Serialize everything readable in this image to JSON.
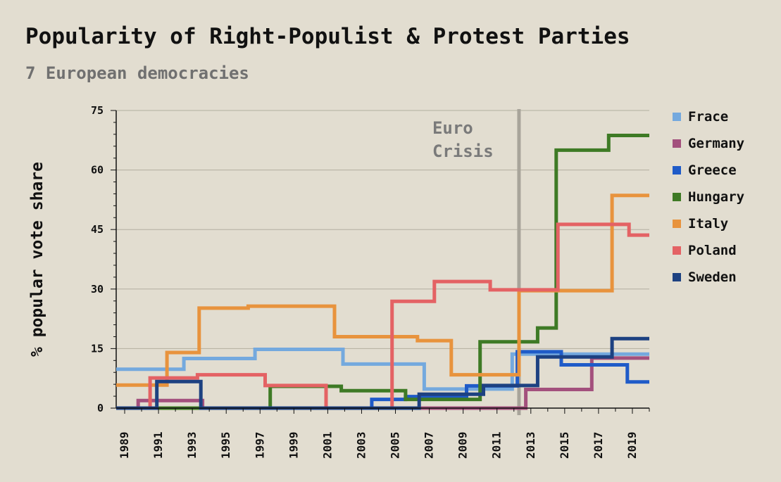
{
  "chart_data": {
    "type": "line",
    "title": "Popularity of Right-Populist & Protest Parties",
    "subtitle": "7 European democracies",
    "ylabel": "% popular vote share",
    "xlabel": "",
    "xlim": [
      1988.5,
      2020
    ],
    "ylim": [
      0,
      75
    ],
    "yticks": [
      0,
      15,
      30,
      45,
      60,
      75
    ],
    "xticks": [
      1989,
      1991,
      1993,
      1995,
      1997,
      1999,
      2001,
      2003,
      2005,
      2007,
      2009,
      2011,
      2013,
      2015,
      2017,
      2019
    ],
    "grid": "horizontal",
    "legend_position": "right",
    "annotation": {
      "text_line1": "Euro",
      "text_line2": "Crisis",
      "x": 2012.3
    },
    "series": [
      {
        "name": "Frace",
        "color": "#74a9de",
        "points": [
          [
            1988.5,
            9.8
          ],
          [
            1992.5,
            9.8
          ],
          [
            1992.5,
            12.5
          ],
          [
            1996.7,
            12.5
          ],
          [
            1996.7,
            14.8
          ],
          [
            2001.9,
            14.8
          ],
          [
            2001.9,
            11.1
          ],
          [
            2006.7,
            11.1
          ],
          [
            2006.7,
            4.8
          ],
          [
            2011.9,
            4.8
          ],
          [
            2011.9,
            13.6
          ],
          [
            2020,
            13.6
          ]
        ]
      },
      {
        "name": "Germany",
        "color": "#a3507d",
        "points": [
          [
            1988.5,
            0
          ],
          [
            1989.8,
            0
          ],
          [
            1989.8,
            1.9
          ],
          [
            1993.6,
            1.9
          ],
          [
            1993.6,
            0
          ],
          [
            2012.7,
            0
          ],
          [
            2012.7,
            4.7
          ],
          [
            2016.6,
            4.7
          ],
          [
            2016.6,
            12.6
          ],
          [
            2020,
            12.6
          ]
        ]
      },
      {
        "name": "Greece",
        "color": "#1f5bc8",
        "points": [
          [
            1988.5,
            0
          ],
          [
            2003.6,
            0
          ],
          [
            2003.6,
            2.2
          ],
          [
            2005.6,
            2.2
          ],
          [
            2005.6,
            2.9
          ],
          [
            2009.2,
            2.9
          ],
          [
            2009.2,
            5.6
          ],
          [
            2012.2,
            5.6
          ],
          [
            2012.2,
            14.2
          ],
          [
            2014.8,
            14.2
          ],
          [
            2014.8,
            10.9
          ],
          [
            2018.7,
            10.9
          ],
          [
            2018.7,
            6.6
          ],
          [
            2020,
            6.6
          ]
        ]
      },
      {
        "name": "Hungary",
        "color": "#3e7a25",
        "points": [
          [
            1988.5,
            0
          ],
          [
            1997.6,
            0
          ],
          [
            1997.6,
            5.5
          ],
          [
            2001.8,
            5.5
          ],
          [
            2001.8,
            4.4
          ],
          [
            2005.6,
            4.4
          ],
          [
            2005.6,
            2.2
          ],
          [
            2010.0,
            2.2
          ],
          [
            2010.0,
            16.7
          ],
          [
            2013.4,
            16.7
          ],
          [
            2013.4,
            20.2
          ],
          [
            2014.5,
            20.2
          ],
          [
            2014.5,
            65
          ],
          [
            2017.6,
            65
          ],
          [
            2017.6,
            68.7
          ],
          [
            2020,
            68.7
          ]
        ]
      },
      {
        "name": "Italy",
        "color": "#e8933d",
        "points": [
          [
            1988.5,
            5.8
          ],
          [
            1991.5,
            5.8
          ],
          [
            1991.5,
            14.0
          ],
          [
            1993.4,
            14.0
          ],
          [
            1993.4,
            25.2
          ],
          [
            1996.3,
            25.2
          ],
          [
            1996.3,
            25.7
          ],
          [
            2001.4,
            25.7
          ],
          [
            2001.4,
            18.0
          ],
          [
            2006.3,
            18.0
          ],
          [
            2006.3,
            17.0
          ],
          [
            2008.3,
            17.0
          ],
          [
            2008.3,
            8.4
          ],
          [
            2012.3,
            8.4
          ],
          [
            2012.3,
            29.6
          ],
          [
            2017.8,
            29.6
          ],
          [
            2017.8,
            53.6
          ],
          [
            2020,
            53.6
          ]
        ]
      },
      {
        "name": "Poland",
        "color": "#e46264",
        "points": [
          [
            1988.5,
            0
          ],
          [
            1990.5,
            0
          ],
          [
            1990.5,
            7.6
          ],
          [
            1993.3,
            7.6
          ],
          [
            1993.3,
            8.4
          ],
          [
            1997.3,
            8.4
          ],
          [
            1997.3,
            5.7
          ],
          [
            2000.9,
            5.7
          ],
          [
            2000.9,
            0
          ],
          [
            2004.8,
            0
          ],
          [
            2004.8,
            26.9
          ],
          [
            2007.3,
            26.9
          ],
          [
            2007.3,
            31.9
          ],
          [
            2010.6,
            31.9
          ],
          [
            2010.6,
            29.8
          ],
          [
            2014.6,
            29.8
          ],
          [
            2014.6,
            46.3
          ],
          [
            2018.8,
            46.3
          ],
          [
            2018.8,
            43.6
          ],
          [
            2020,
            43.6
          ]
        ]
      },
      {
        "name": "Sweden",
        "color": "#1d4181",
        "points": [
          [
            1988.5,
            0
          ],
          [
            1990.9,
            0
          ],
          [
            1990.9,
            6.7
          ],
          [
            1993.5,
            6.7
          ],
          [
            1993.5,
            0
          ],
          [
            2006.4,
            0
          ],
          [
            2006.4,
            3.5
          ],
          [
            2010.2,
            3.5
          ],
          [
            2010.2,
            5.7
          ],
          [
            2013.4,
            5.7
          ],
          [
            2013.4,
            12.9
          ],
          [
            2017.8,
            12.9
          ],
          [
            2017.8,
            17.5
          ],
          [
            2020,
            17.5
          ]
        ]
      }
    ]
  }
}
